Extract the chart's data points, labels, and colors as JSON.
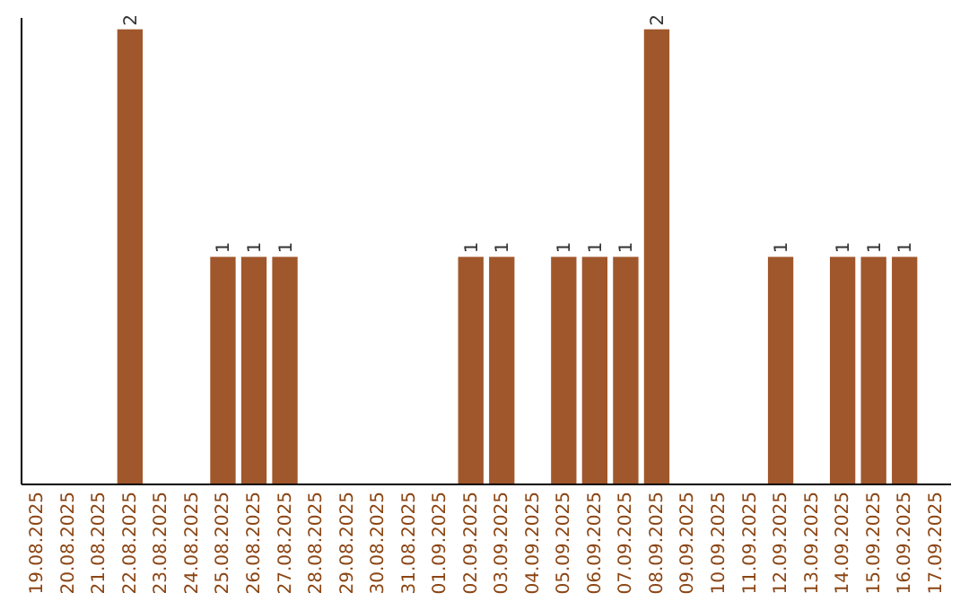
{
  "chart_data": {
    "type": "bar",
    "categories": [
      "19.08.2025",
      "20.08.2025",
      "21.08.2025",
      "22.08.2025",
      "23.08.2025",
      "24.08.2025",
      "25.08.2025",
      "26.08.2025",
      "27.08.2025",
      "28.08.2025",
      "29.08.2025",
      "30.08.2025",
      "31.08.2025",
      "01.09.2025",
      "02.09.2025",
      "03.09.2025",
      "04.09.2025",
      "05.09.2025",
      "06.09.2025",
      "07.09.2025",
      "08.09.2025",
      "09.09.2025",
      "10.09.2025",
      "11.09.2025",
      "12.09.2025",
      "13.09.2025",
      "14.09.2025",
      "15.09.2025",
      "16.09.2025",
      "17.09.2025"
    ],
    "values": [
      0,
      0,
      0,
      2,
      0,
      0,
      1,
      1,
      1,
      0,
      0,
      0,
      0,
      0,
      1,
      1,
      0,
      1,
      1,
      1,
      2,
      0,
      0,
      0,
      1,
      0,
      1,
      1,
      1,
      0
    ],
    "value_labels": [
      null,
      null,
      null,
      "2",
      null,
      null,
      "1",
      "1",
      "1",
      null,
      null,
      null,
      null,
      null,
      "1",
      "1",
      null,
      "1",
      "1",
      "1",
      "2",
      null,
      null,
      null,
      "1",
      null,
      "1",
      "1",
      "1",
      null
    ],
    "color": "#a0572b",
    "ylim": [
      0,
      2.05
    ],
    "tick_labels": "x"
  }
}
